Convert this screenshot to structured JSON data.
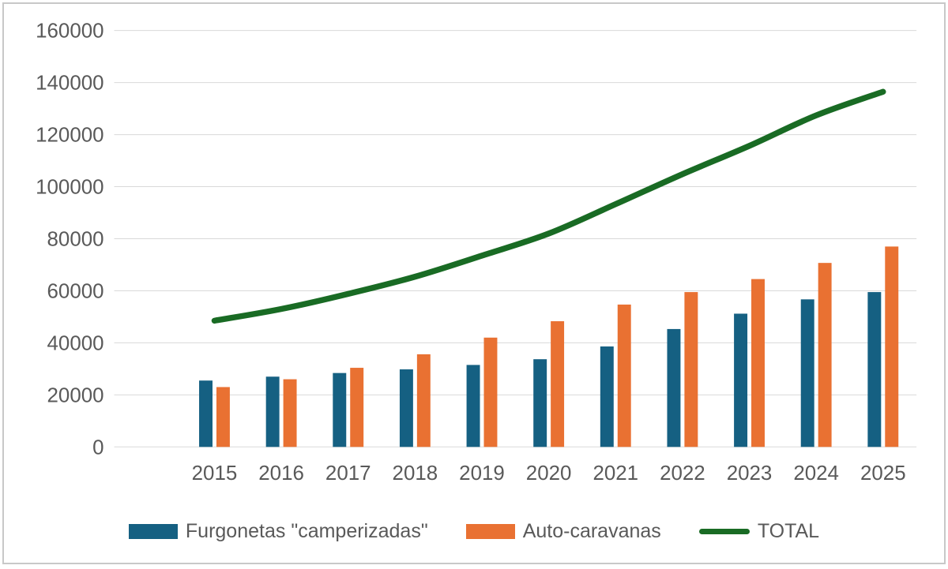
{
  "chart_data": {
    "type": "combo",
    "title": "",
    "categories": [
      "2015",
      "2016",
      "2017",
      "2018",
      "2019",
      "2020",
      "2021",
      "2022",
      "2023",
      "2024",
      "2025"
    ],
    "series": [
      {
        "name": "Furgonetas \"camperizadas\"",
        "type": "bar",
        "color": "#156082",
        "values": [
          25500,
          27000,
          28400,
          29800,
          31500,
          33700,
          38600,
          45300,
          51200,
          56700,
          59500
        ]
      },
      {
        "name": "Auto-caravanas",
        "type": "bar",
        "color": "#E97132",
        "values": [
          23000,
          26000,
          30400,
          35600,
          42000,
          48300,
          54700,
          59500,
          64500,
          70700,
          77000
        ]
      },
      {
        "name": "TOTAL",
        "type": "line",
        "color": "#196B24",
        "smooth": true,
        "values": [
          48500,
          53000,
          58800,
          65400,
          73500,
          82000,
          93300,
          104800,
          115700,
          127400,
          136500
        ]
      }
    ],
    "y_axis": {
      "min": 0,
      "max": 160000,
      "step": 20000,
      "tick_labels": [
        "0",
        "20000",
        "40000",
        "60000",
        "80000",
        "100000",
        "120000",
        "140000",
        "160000"
      ]
    },
    "x_axis": {
      "tick_labels": [
        "2015",
        "2016",
        "2017",
        "2018",
        "2019",
        "2020",
        "2021",
        "2022",
        "2023",
        "2024",
        "2025"
      ]
    },
    "grid": true,
    "legend_position": "bottom",
    "leading_blank_category": true,
    "colors": {
      "bar_blue": "#156082",
      "bar_orange": "#E97132",
      "line_green": "#196B24",
      "axis_text": "#595959",
      "gridline": "#D9D9D9",
      "frame_border": "#C8C8C8",
      "background": "#FFFFFF"
    }
  }
}
